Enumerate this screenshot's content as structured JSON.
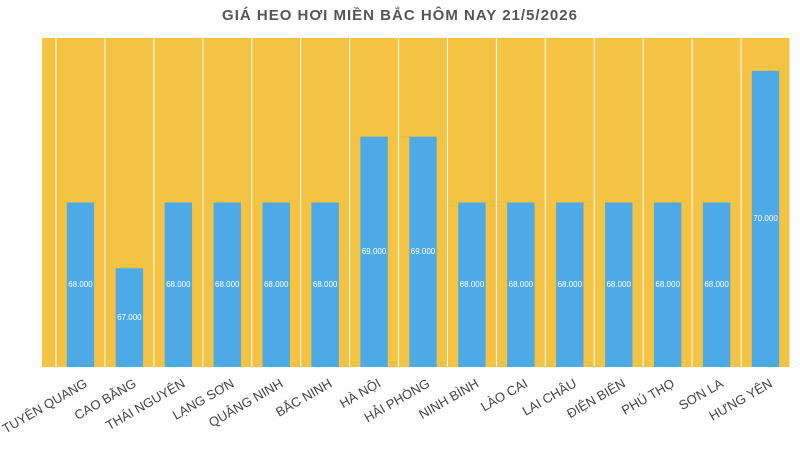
{
  "chart_data": {
    "type": "bar",
    "title": "GIÁ HEO HƠI MIỀN BẮC HÔM NAY 21/5/2026",
    "categories": [
      "TUYÊN QUANG",
      "CAO BẰNG",
      "THÁI NGUYÊN",
      "LẠNG SƠN",
      "QUẢNG NINH",
      "BẮC NINH",
      "HÀ NỘI",
      "HẢI PHÒNG",
      "NINH BÌNH",
      "LÀO CAI",
      "LAI CHÂU",
      "ĐIỆN BIÊN",
      "PHÚ THỌ",
      "SƠN LA",
      "HƯNG YÊN"
    ],
    "values": [
      68000,
      67000,
      68000,
      68000,
      68000,
      68000,
      69000,
      69000,
      68000,
      68000,
      68000,
      68000,
      68000,
      68000,
      70000
    ],
    "value_labels": [
      "68.000",
      "67.000",
      "68.000",
      "68.000",
      "68.000",
      "68.000",
      "69.000",
      "69.000",
      "68.000",
      "68.000",
      "68.000",
      "68.000",
      "68.000",
      "68.000",
      "70.000"
    ],
    "color": "#4daae6",
    "background": "#f5c343",
    "ylim": [
      65500,
      70500
    ]
  }
}
